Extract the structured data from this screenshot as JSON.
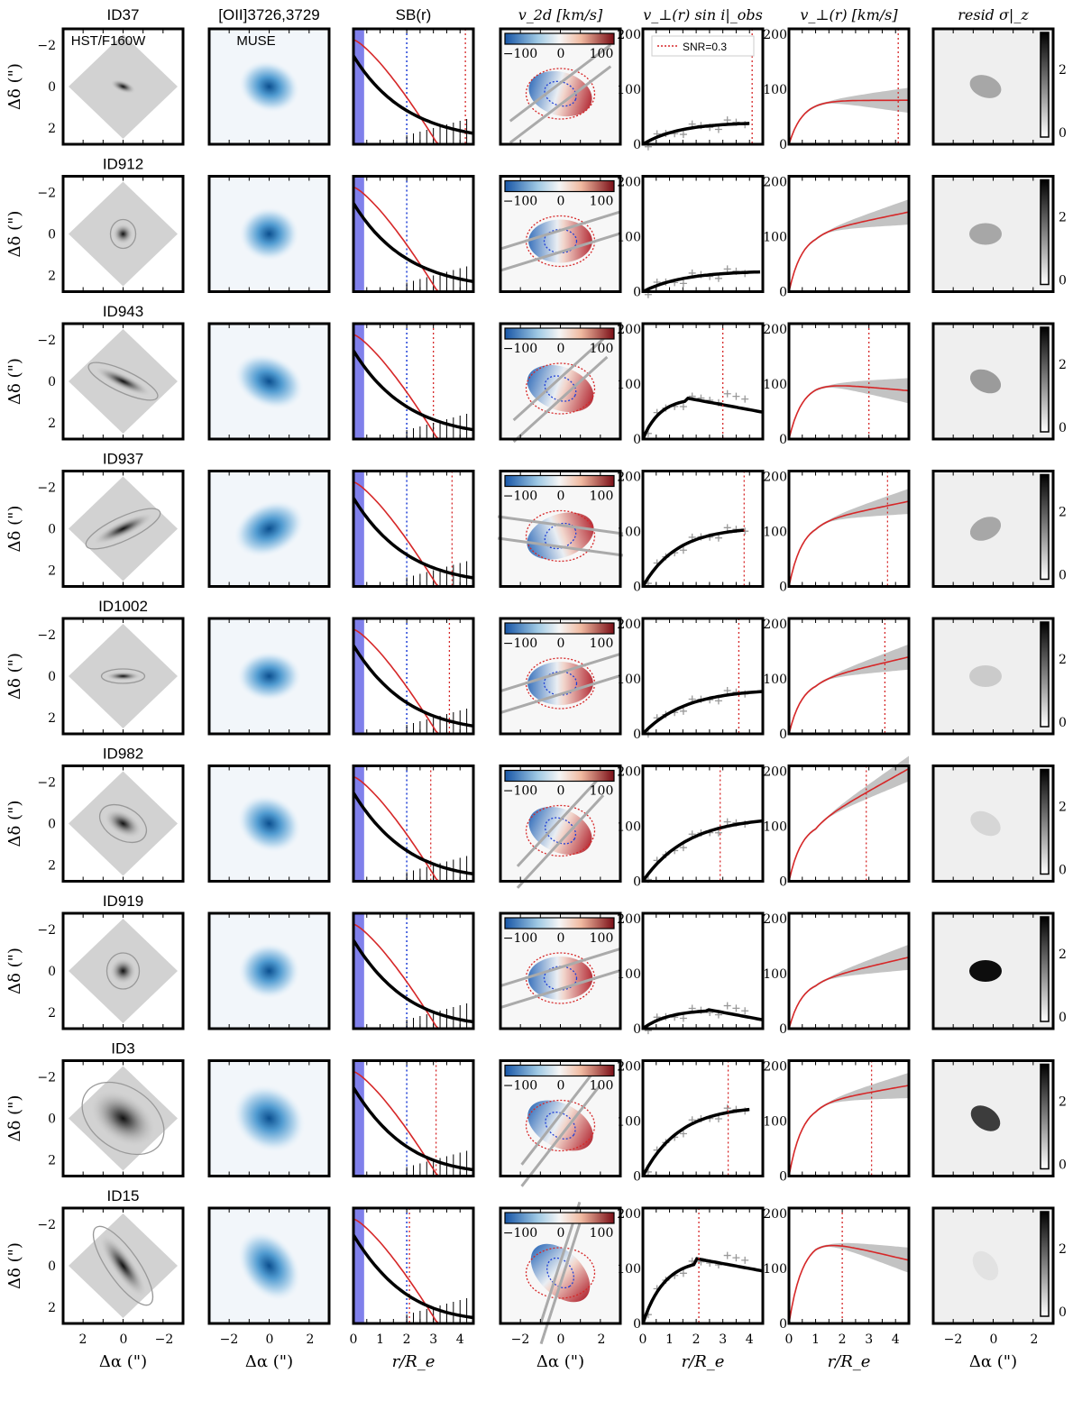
{
  "column_titles": [
    "[OII]3726,3729",
    "SB(r)",
    "v_2d [km/s]",
    "v_⊥(r) sin i|_obs",
    "v_⊥(r) [km/s]",
    "resid σ|_z"
  ],
  "row_titles": [
    "ID37",
    "ID912",
    "ID943",
    "ID937",
    "ID1002",
    "ID982",
    "ID919",
    "ID3",
    "ID15"
  ],
  "panel_labels": {
    "hst": "HST/F160W",
    "muse": "MUSE",
    "legend_snr": "SNR=0.3"
  },
  "axis_labels": {
    "ylabel_sky": "Δδ (\")",
    "xlabel_sky": "Δα (\")",
    "xlabel_radius": "r/R_e"
  },
  "ticks": {
    "sky_y": [
      "−2",
      "0",
      "2"
    ],
    "sky_x_hst": [
      "2",
      "0",
      "−2"
    ],
    "sky_x": [
      "−2",
      "0",
      "2"
    ],
    "radius_x": [
      "0",
      "1",
      "2",
      "3",
      "4"
    ],
    "vel_y": [
      "0",
      "100",
      "200"
    ],
    "v2d_cbar": [
      "−100",
      "0",
      "100"
    ],
    "resid_cbar": [
      "0",
      "2"
    ]
  },
  "colors": {
    "red": "#d62728",
    "blue": "#1f3fd6",
    "psf_band": "#6a6ae8",
    "gray": "#aaaaaa"
  },
  "chart_data": {
    "type": "grid of panels (image maps, surface-brightness profiles, rotation curves)",
    "sb_profiles": {
      "xlim": [
        0,
        4.5
      ],
      "r_dotted_blue": 2.0,
      "r_dotted_red": [
        4.2,
        null,
        3.0,
        3.7,
        3.6,
        2.9,
        null,
        3.1,
        2.1
      ]
    },
    "vobs": {
      "xlim": [
        0,
        4.5
      ],
      "ylim": [
        0,
        210
      ],
      "series": [
        {
          "id": "ID37",
          "vmax": 40,
          "rflat": 3.4,
          "shape": "rising",
          "r_snr": 4.1
        },
        {
          "id": "ID912",
          "vmax": 38,
          "rflat": 3.8,
          "shape": "rising",
          "r_snr": null
        },
        {
          "id": "ID943",
          "vmax": 75,
          "rflat": 1.6,
          "shape": "peaked",
          "r_snr": 3.0
        },
        {
          "id": "ID937",
          "vmax": 108,
          "rflat": 3.2,
          "shape": "rising",
          "r_snr": 3.8
        },
        {
          "id": "ID1002",
          "vmax": 82,
          "rflat": 4.0,
          "shape": "rising",
          "r_snr": 3.6
        },
        {
          "id": "ID982",
          "vmax": 118,
          "rflat": 4.2,
          "shape": "rising",
          "r_snr": 2.9
        },
        {
          "id": "ID919",
          "vmax": 35,
          "rflat": 2.4,
          "shape": "peaked",
          "r_snr": null
        },
        {
          "id": "ID3",
          "vmax": 128,
          "rflat": 3.4,
          "shape": "rising",
          "r_snr": 3.2
        },
        {
          "id": "ID15",
          "vmax": 118,
          "rflat": 2.0,
          "shape": "peaked",
          "r_snr": 2.1
        }
      ]
    },
    "vrot": {
      "xlim": [
        0,
        4.5
      ],
      "ylim": [
        0,
        210
      ],
      "series": [
        {
          "id": "ID37",
          "vflat": 80,
          "vout": 80,
          "r_snr": 4.1
        },
        {
          "id": "ID912",
          "vflat": 110,
          "vout": 145,
          "r_snr": null
        },
        {
          "id": "ID943",
          "vflat": 103,
          "vout": 88,
          "r_snr": 3.0
        },
        {
          "id": "ID937",
          "vflat": 120,
          "vout": 155,
          "r_snr": 3.7
        },
        {
          "id": "ID1002",
          "vflat": 100,
          "vout": 140,
          "r_snr": 3.6
        },
        {
          "id": "ID982",
          "vflat": 110,
          "vout": 205,
          "r_snr": 2.9
        },
        {
          "id": "ID919",
          "vflat": 90,
          "vout": 130,
          "r_snr": null
        },
        {
          "id": "ID3",
          "vflat": 135,
          "vout": 165,
          "r_snr": 3.1
        },
        {
          "id": "ID15",
          "vflat": 155,
          "vout": 115,
          "r_snr": 2.0
        }
      ]
    }
  }
}
